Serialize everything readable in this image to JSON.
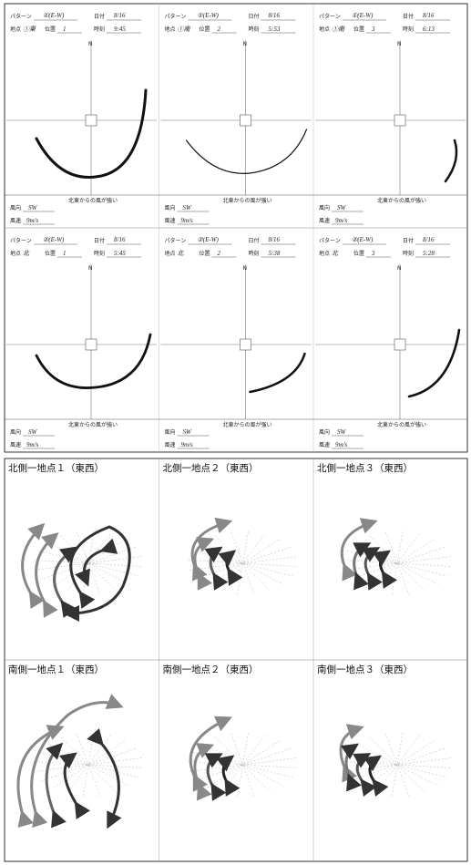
{
  "form_labels": {
    "pattern": "パターン",
    "date": "日付",
    "site": "地点",
    "position": "位置",
    "time": "時刻",
    "wind_direction": "風向",
    "wind_speed": "風速",
    "north": "N"
  },
  "top_panels": [
    {
      "pattern": "①(E-W)",
      "date": "8/16",
      "site": "①東",
      "position": "1",
      "time": "9:45",
      "wind_direction": "SW",
      "wind_speed": "9m/s",
      "note": "北東からの風が強い"
    },
    {
      "pattern": "①(E-W)",
      "date": "8/16",
      "site": "①南",
      "position": "2",
      "time": "5:53",
      "wind_direction": "SW",
      "wind_speed": "9m/s",
      "note": "北東からの風が強い"
    },
    {
      "pattern": "①(E-W)",
      "date": "8/16",
      "site": "①南",
      "position": "3",
      "time": "6:13",
      "wind_direction": "SW",
      "wind_speed": "9m/s",
      "note": "北東からの風が強い"
    },
    {
      "pattern": "②(E-W)",
      "date": "8/16",
      "site": "北",
      "position": "1",
      "time": "5:45",
      "wind_direction": "SW",
      "wind_speed": "9m/s",
      "note": "北東からの風が強い"
    },
    {
      "pattern": "②(E-W)",
      "date": "8/16",
      "site": "北",
      "position": "2",
      "time": "5:38",
      "wind_direction": "SW",
      "wind_speed": "9m/s",
      "note": "北東からの風が強い"
    },
    {
      "pattern": "②(E-W)",
      "date": "8/16",
      "site": "北",
      "position": "3",
      "time": "5:28",
      "wind_direction": "SW",
      "wind_speed": "9m/s",
      "note": "北東からの風が強い"
    }
  ],
  "bottom_panels": [
    {
      "label": "北側一地点１（東西）"
    },
    {
      "label": "北側一地点２（東西）"
    },
    {
      "label": "北側一地点３（東西）"
    },
    {
      "label": "南側一地点１（東西）"
    },
    {
      "label": "南側一地点２（東西）"
    },
    {
      "label": "南側一地点３（東西）"
    }
  ]
}
